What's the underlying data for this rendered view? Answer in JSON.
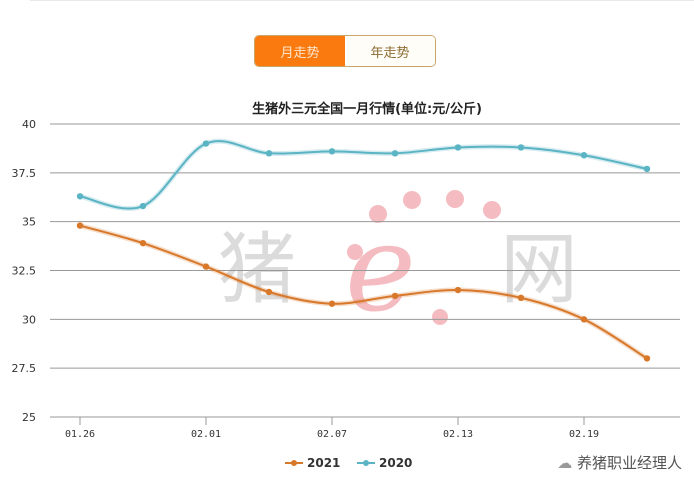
{
  "toggle": {
    "month_label": "月走势",
    "year_label": "年走势",
    "active": "month"
  },
  "chart_data": {
    "type": "line",
    "title": "生猪外三元全国一月行情(单位:元/公斤)",
    "xlabel": "",
    "ylabel": "",
    "x": [
      "01.26",
      "01.29",
      "02.01",
      "02.04",
      "02.07",
      "02.10",
      "02.13",
      "02.16",
      "02.19",
      "02.22"
    ],
    "x_tick_labels": [
      "01.26",
      "02.01",
      "02.07",
      "02.13",
      "02.19"
    ],
    "y_ticks": [
      "25",
      "27.5",
      "30",
      "32.5",
      "35",
      "37.5",
      "40"
    ],
    "ylim": [
      25,
      40
    ],
    "grid": true,
    "legend_position": "bottom",
    "series": [
      {
        "name": "2021",
        "color": "#d8782a",
        "values": [
          34.8,
          33.9,
          32.7,
          31.4,
          30.8,
          31.2,
          31.5,
          31.1,
          30.0,
          28.0
        ]
      },
      {
        "name": "2020",
        "color": "#5ab4c4",
        "values": [
          36.3,
          35.8,
          39.0,
          38.5,
          38.6,
          38.5,
          38.8,
          38.8,
          38.4,
          37.7
        ]
      }
    ]
  },
  "watermark": {
    "center_logo": "猪e网",
    "account": "养猪职业经理人"
  }
}
